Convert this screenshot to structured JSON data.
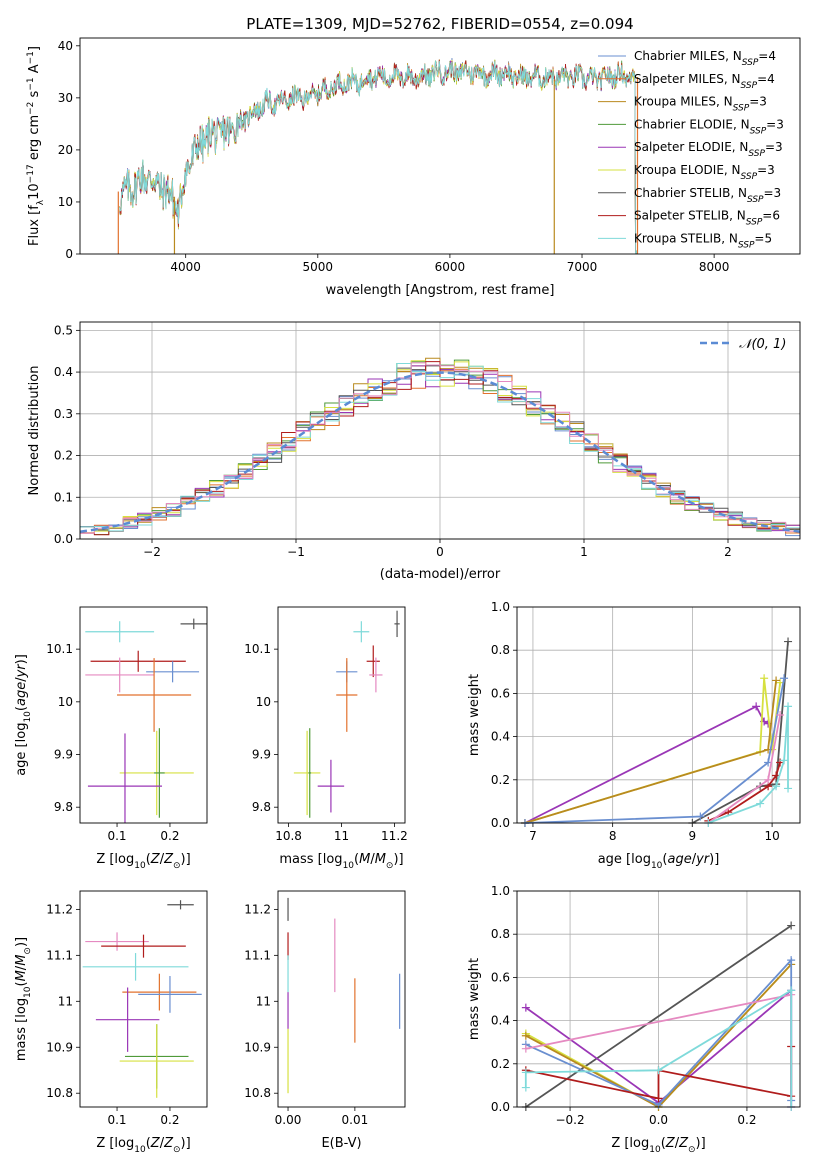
{
  "figure": {
    "title": "PLATE=1309, MJD=52762, FIBERID=0554, z=0.094"
  },
  "colors": {
    "Chabrier MILES": "#6a8fd0",
    "Salpeter MILES": "#e2722e",
    "Kroupa MILES": "#b98a1f",
    "Chabrier ELODIE": "#4f9a3a",
    "Salpeter ELODIE": "#9a36b6",
    "Kroupa ELODIE": "#d6e040",
    "Chabrier STELIB": "#555555",
    "Salpeter STELIB": "#b01c1c",
    "Kroupa STELIB": "#7fdada",
    "extra pink": "#e58ac1",
    "normal curve": "#5b8bd4"
  },
  "chart_data": [
    {
      "type": "line",
      "panel": "spectrum",
      "title": "PLATE=1309, MJD=52762, FIBERID=0554, z=0.094",
      "xlabel": "wavelength [Angstrom, rest frame]",
      "ylabel": "Flux [f_λ10^-17 erg cm^-2 s^-1 A^-1]",
      "xlim": [
        3200,
        8650
      ],
      "ylim": [
        0,
        41.5
      ],
      "xticks": [
        4000,
        5000,
        6000,
        7000,
        8000
      ],
      "yticks": [
        0,
        10,
        20,
        30,
        40
      ],
      "legend": {
        "position": "top-right",
        "entries": [
          {
            "name": "Chabrier MILES",
            "nssp": "4"
          },
          {
            "name": "Salpeter MILES",
            "nssp": "4"
          },
          {
            "name": "Kroupa MILES",
            "nssp": "3"
          },
          {
            "name": "Chabrier ELODIE",
            "nssp": "3"
          },
          {
            "name": "Salpeter ELODIE",
            "nssp": "3"
          },
          {
            "name": "Kroupa ELODIE",
            "nssp": "3"
          },
          {
            "name": "Chabrier STELIB",
            "nssp": "3"
          },
          {
            "name": "Salpeter STELIB",
            "nssp": "6"
          },
          {
            "name": "Kroupa STELIB",
            "nssp": "5"
          }
        ]
      },
      "spectrum_envelope": {
        "x": [
          3500,
          3600,
          3700,
          3800,
          3900,
          3950,
          4000,
          4100,
          4200,
          4300,
          4400,
          4500,
          4600,
          4700,
          4800,
          4900,
          5000,
          5100,
          5200,
          5300,
          5400,
          5500,
          5600,
          5700,
          5800,
          5900,
          6000,
          6100,
          6200,
          6300,
          6400,
          6500,
          6600,
          6700,
          6800,
          6900,
          7000,
          7100,
          7200,
          7300,
          7400
        ],
        "y": [
          11,
          13,
          15,
          13,
          11,
          8,
          16,
          21,
          23,
          23,
          25,
          27,
          29,
          29,
          30,
          30,
          31,
          32,
          33,
          33,
          34,
          34,
          34,
          34,
          34,
          35,
          35,
          35,
          35,
          34.5,
          35,
          34,
          34,
          34,
          34,
          34,
          34,
          33.5,
          34,
          34.5,
          34
        ]
      }
    },
    {
      "type": "line",
      "panel": "residual-distribution",
      "xlabel": "(data-model)/error",
      "ylabel": "Normed distribution",
      "xlim": [
        -2.5,
        2.5
      ],
      "ylim": [
        0,
        0.52
      ],
      "xticks": [
        -2,
        -1,
        0,
        1,
        2
      ],
      "yticks": [
        0.0,
        0.1,
        0.2,
        0.3,
        0.4,
        0.5
      ],
      "grid": true,
      "legend": {
        "position": "top-right",
        "entries": [
          "𝒩(0, 1)"
        ]
      },
      "normal_curve": {
        "mean": 0,
        "sigma": 1
      },
      "histogram_bin_width": 0.1
    },
    {
      "type": "scatter",
      "panel": "age-vs-Z",
      "xlabel": "Z [log10(Z/Z☉)]",
      "ylabel": "age [log10(age/yr)]",
      "xlim": [
        0.03,
        0.27
      ],
      "ylim": [
        9.77,
        10.18
      ],
      "xticks": [
        0.1,
        0.2
      ],
      "yticks": [
        9.8,
        9.9,
        10.0,
        10.1
      ],
      "points": [
        {
          "series": "Chabrier STELIB",
          "x": 0.245,
          "y": 10.148,
          "xerr": 0.025,
          "yerr": 0.01
        },
        {
          "series": "Kroupa STELIB",
          "x": 0.105,
          "y": 10.133,
          "xerr": 0.065,
          "yerr": 0.02
        },
        {
          "series": "Salpeter STELIB",
          "x": 0.14,
          "y": 10.077,
          "xerr": 0.09,
          "yerr": 0.02
        },
        {
          "series": "Chabrier MILES",
          "x": 0.205,
          "y": 10.057,
          "xerr": 0.05,
          "yerr": 0.02
        },
        {
          "series": "extra pink",
          "x": 0.105,
          "y": 10.051,
          "xerr": 0.065,
          "yerr": 0.033
        },
        {
          "series": "Salpeter MILES",
          "x": 0.17,
          "y": 10.013,
          "xerr": 0.07,
          "yerr": 0.07
        },
        {
          "series": "Kroupa ELODIE",
          "x": 0.175,
          "y": 9.865,
          "xerr": 0.07,
          "yerr": 0.08
        },
        {
          "series": "Chabrier ELODIE",
          "x": 0.18,
          "y": 9.865,
          "xerr": 0.01,
          "yerr": 0.085
        },
        {
          "series": "Salpeter ELODIE",
          "x": 0.115,
          "y": 9.84,
          "xerr": 0.07,
          "yerr": 0.1
        }
      ]
    },
    {
      "type": "scatter",
      "panel": "age-vs-mass",
      "xlabel": "mass [log10(M/M☉)]",
      "ylabel": "",
      "xlim": [
        10.76,
        11.24
      ],
      "ylim": [
        9.77,
        10.18
      ],
      "xticks": [
        10.8,
        11.0,
        11.2
      ],
      "yticks": [
        9.8,
        9.9,
        10.0,
        10.1
      ],
      "points": [
        {
          "series": "Chabrier STELIB",
          "x": 11.21,
          "y": 10.148,
          "xerr": 0.01,
          "yerr": 0.025
        },
        {
          "series": "Kroupa STELIB",
          "x": 11.075,
          "y": 10.133,
          "xerr": 0.03,
          "yerr": 0.02
        },
        {
          "series": "Salpeter STELIB",
          "x": 11.12,
          "y": 10.077,
          "xerr": 0.025,
          "yerr": 0.03
        },
        {
          "series": "Chabrier MILES",
          "x": 11.02,
          "y": 10.057,
          "xerr": 0.04,
          "yerr": 0.02
        },
        {
          "series": "extra pink",
          "x": 11.13,
          "y": 10.051,
          "xerr": 0.025,
          "yerr": 0.033
        },
        {
          "series": "Salpeter MILES",
          "x": 11.02,
          "y": 10.013,
          "xerr": 0.04,
          "yerr": 0.07
        },
        {
          "series": "Kroupa ELODIE",
          "x": 10.87,
          "y": 9.865,
          "xerr": 0.05,
          "yerr": 0.08
        },
        {
          "series": "Chabrier ELODIE",
          "x": 10.88,
          "y": 9.865,
          "xerr": 0.005,
          "yerr": 0.085
        },
        {
          "series": "Salpeter ELODIE",
          "x": 10.96,
          "y": 9.84,
          "xerr": 0.05,
          "yerr": 0.05
        }
      ]
    },
    {
      "type": "line",
      "panel": "mass-weight-vs-age",
      "xlabel": "age [log10(age/yr)]",
      "ylabel": "mass weight",
      "xlim": [
        6.8,
        10.35
      ],
      "ylim": [
        0,
        1.0
      ],
      "xticks": [
        7,
        8,
        9,
        10
      ],
      "yticks": [
        0.0,
        0.2,
        0.4,
        0.6,
        0.8,
        1.0
      ],
      "grid": true,
      "series": [
        {
          "name": "Chabrier STELIB",
          "points": [
            [
              9.0,
              0.0
            ],
            [
              9.85,
              0.17
            ],
            [
              10.05,
              0.18
            ],
            [
              10.2,
              0.84
            ]
          ]
        },
        {
          "name": "Salpeter ELODIE",
          "points": [
            [
              6.9,
              0.0
            ],
            [
              9.8,
              0.54
            ],
            [
              9.9,
              0.47
            ],
            [
              9.95,
              0.46
            ]
          ]
        },
        {
          "name": "Kroupa ELODIE",
          "points": [
            [
              6.9,
              0.0
            ],
            [
              9.85,
              0.33
            ],
            [
              9.9,
              0.67
            ],
            [
              10.0,
              0.34
            ],
            [
              10.1,
              0.65
            ]
          ]
        },
        {
          "name": "Kroupa MILES",
          "points": [
            [
              6.9,
              0.0
            ],
            [
              9.95,
              0.34
            ],
            [
              10.05,
              0.66
            ]
          ]
        },
        {
          "name": "Chabrier MILES",
          "points": [
            [
              6.9,
              0.0
            ],
            [
              9.1,
              0.03
            ],
            [
              9.95,
              0.28
            ],
            [
              10.15,
              0.67
            ]
          ]
        },
        {
          "name": "Salpeter STELIB",
          "points": [
            [
              9.2,
              0.01
            ],
            [
              9.45,
              0.05
            ],
            [
              9.95,
              0.17
            ],
            [
              10.05,
              0.22
            ],
            [
              10.1,
              0.28
            ]
          ]
        },
        {
          "name": "extra pink",
          "points": [
            [
              9.2,
              0.0
            ],
            [
              9.95,
              0.2
            ],
            [
              10.1,
              0.5
            ]
          ]
        },
        {
          "name": "Kroupa STELIB",
          "points": [
            [
              9.2,
              0.0
            ],
            [
              9.85,
              0.09
            ],
            [
              10.05,
              0.17
            ],
            [
              10.15,
              0.29
            ],
            [
              10.2,
              0.54
            ],
            [
              10.2,
              0.16
            ]
          ]
        }
      ]
    },
    {
      "type": "scatter",
      "panel": "mass-vs-Z",
      "xlabel": "Z [log10(Z/Z☉)]",
      "ylabel": "mass [log10(M/M☉)]",
      "xlim": [
        0.03,
        0.27
      ],
      "ylim": [
        10.77,
        11.24
      ],
      "xticks": [
        0.1,
        0.2
      ],
      "yticks": [
        10.8,
        10.9,
        11.0,
        11.1,
        11.2
      ],
      "points": [
        {
          "series": "Chabrier STELIB",
          "x": 0.22,
          "y": 11.21,
          "xerr": 0.025,
          "yerr": 0.01
        },
        {
          "series": "extra pink",
          "x": 0.1,
          "y": 11.13,
          "xerr": 0.06,
          "yerr": 0.02
        },
        {
          "series": "Salpeter STELIB",
          "x": 0.15,
          "y": 11.12,
          "xerr": 0.08,
          "yerr": 0.025
        },
        {
          "series": "Kroupa STELIB",
          "x": 0.135,
          "y": 11.075,
          "xerr": 0.1,
          "yerr": 0.03
        },
        {
          "series": "Salpeter MILES",
          "x": 0.18,
          "y": 11.02,
          "xerr": 0.07,
          "yerr": 0.04
        },
        {
          "series": "Chabrier MILES",
          "x": 0.2,
          "y": 11.015,
          "xerr": 0.06,
          "yerr": 0.04
        },
        {
          "series": "Salpeter ELODIE",
          "x": 0.12,
          "y": 10.96,
          "xerr": 0.06,
          "yerr": 0.07
        },
        {
          "series": "Chabrier ELODIE",
          "x": 0.175,
          "y": 10.88,
          "xerr": 0.06,
          "yerr": 0.07
        },
        {
          "series": "Kroupa ELODIE",
          "x": 0.175,
          "y": 10.87,
          "xerr": 0.07,
          "yerr": 0.08
        }
      ]
    },
    {
      "type": "scatter",
      "panel": "mass-vs-ebv",
      "xlabel": "E(B-V)",
      "ylabel": "",
      "xlim": [
        -0.0015,
        0.0175
      ],
      "ylim": [
        10.77,
        11.24
      ],
      "xticks": [
        0.0,
        0.01
      ],
      "xticklabels": [
        "0.00",
        "0.01"
      ],
      "yticks": [
        10.8,
        10.9,
        11.0,
        11.1,
        11.2
      ],
      "points": [
        {
          "series": "Chabrier STELIB",
          "x": 0.0,
          "y": 11.2,
          "yerr": 0.025
        },
        {
          "series": "Salpeter STELIB",
          "x": 0.0,
          "y": 11.12,
          "yerr": 0.03
        },
        {
          "series": "extra pink",
          "x": 0.007,
          "y": 11.1,
          "yerr": 0.08
        },
        {
          "series": "Kroupa STELIB",
          "x": 0.0,
          "y": 11.06,
          "yerr": 0.04
        },
        {
          "series": "Salpeter ELODIE",
          "x": 0.0,
          "y": 10.98,
          "yerr": 0.04
        },
        {
          "series": "Salpeter MILES",
          "x": 0.01,
          "y": 10.98,
          "yerr": 0.07
        },
        {
          "series": "Chabrier MILES",
          "x": 0.0167,
          "y": 11.0,
          "yerr": 0.06
        },
        {
          "series": "Kroupa ELODIE",
          "x": 0.0,
          "y": 10.87,
          "yerr": 0.07
        }
      ]
    },
    {
      "type": "line",
      "panel": "mass-weight-vs-Z",
      "xlabel": "Z [log10(Z/Z☉)]",
      "ylabel": "mass weight",
      "xlim": [
        -0.32,
        0.32
      ],
      "ylim": [
        0,
        1.0
      ],
      "xticks": [
        -0.2,
        0.0,
        0.2
      ],
      "xticklabels": [
        "−0.2",
        "0.0",
        "0.2"
      ],
      "yticks": [
        0.0,
        0.2,
        0.4,
        0.6,
        0.8,
        1.0
      ],
      "grid": true,
      "series": [
        {
          "name": "Chabrier STELIB",
          "points": [
            [
              -0.3,
              0.0
            ],
            [
              0.3,
              0.84
            ]
          ]
        },
        {
          "name": "Salpeter ELODIE",
          "points": [
            [
              -0.3,
              0.46
            ],
            [
              0.0,
              0.02
            ],
            [
              0.3,
              0.54
            ],
            [
              0.3,
              0.0
            ]
          ]
        },
        {
          "name": "Kroupa ELODIE",
          "points": [
            [
              -0.3,
              0.34
            ],
            [
              0.0,
              0.0
            ],
            [
              0.3,
              0.66
            ]
          ]
        },
        {
          "name": "Kroupa MILES",
          "points": [
            [
              -0.3,
              0.33
            ],
            [
              0.0,
              0.0
            ],
            [
              0.3,
              0.66
            ]
          ]
        },
        {
          "name": "Chabrier MILES",
          "points": [
            [
              -0.3,
              0.29
            ],
            [
              0.0,
              0.01
            ],
            [
              0.3,
              0.68
            ],
            [
              0.3,
              0.03
            ]
          ]
        },
        {
          "name": "Salpeter STELIB",
          "points": [
            [
              -0.3,
              0.17
            ],
            [
              0.0,
              0.04
            ],
            [
              0.0,
              0.17
            ],
            [
              0.3,
              0.05
            ],
            [
              0.3,
              0.28
            ]
          ]
        },
        {
          "name": "extra pink",
          "points": [
            [
              -0.3,
              0.27
            ],
            [
              0.3,
              0.52
            ],
            [
              0.3,
              0.0
            ]
          ]
        },
        {
          "name": "Kroupa STELIB",
          "points": [
            [
              -0.3,
              0.09
            ],
            [
              -0.3,
              0.16
            ],
            [
              0.0,
              0.17
            ],
            [
              0.3,
              0.54
            ],
            [
              0.3,
              0.0
            ]
          ]
        }
      ]
    }
  ]
}
